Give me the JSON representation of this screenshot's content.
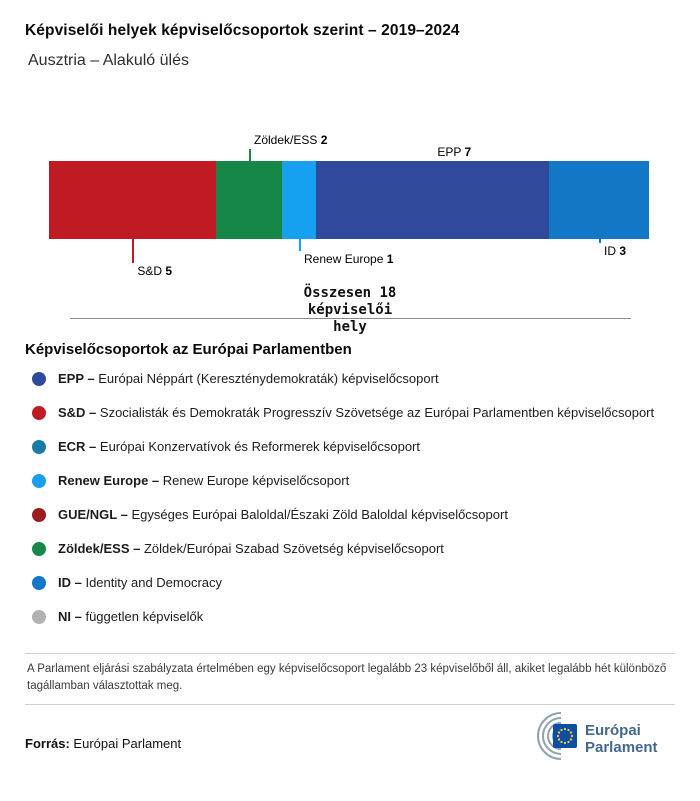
{
  "header": {
    "title": "Képviselői helyek képviselőcsoportok szerint – 2019–2024",
    "subtitle": "Ausztria – Alakuló ülés"
  },
  "chart_data": {
    "type": "bar",
    "title": "Képviselői helyek képviselőcsoportok szerint – 2019–2024",
    "subtitle": "Ausztria – Alakuló ülés",
    "total": 18,
    "total_label": "Összesen 18 képviselői hely",
    "segments": [
      {
        "name": "S&D",
        "value": 5,
        "color": "#c01a23",
        "label_side": "bottom"
      },
      {
        "name": "Zöldek/ESS",
        "value": 2,
        "color": "#178747",
        "label_side": "top"
      },
      {
        "name": "Renew Europe",
        "value": 1,
        "color": "#18a0f0",
        "label_side": "bottom"
      },
      {
        "name": "EPP",
        "value": 7,
        "color": "#31499c",
        "label_side": "top"
      },
      {
        "name": "ID",
        "value": 3,
        "color": "#1377c8",
        "label_side": "bottom"
      }
    ]
  },
  "legend": {
    "heading": "Képviselőcsoportok az Európai Parlamentben",
    "items": [
      {
        "abbr": "EPP –",
        "desc": "Európai Néppárt (Kereszténydemokraták) képviselőcsoport",
        "color": "#31499c"
      },
      {
        "abbr": "S&D –",
        "desc": "Szocialisták és Demokraták Progresszív Szövetsége az Európai Parlamentben képviselőcsoport",
        "color": "#c01a23"
      },
      {
        "abbr": "ECR –",
        "desc": "Európai Konzervatívok és Reformerek képviselőcsoport",
        "color": "#1a7ca6"
      },
      {
        "abbr": "Renew Europe –",
        "desc": "Renew Europe képviselőcsoport",
        "color": "#18a0f0"
      },
      {
        "abbr": "GUE/NGL –",
        "desc": "Egységes Európai Baloldal/Északi Zöld Baloldal képviselőcsoport",
        "color": "#9c1b1f"
      },
      {
        "abbr": "Zöldek/ESS –",
        "desc": "Zöldek/Európai Szabad Szövetség képviselőcsoport",
        "color": "#178747"
      },
      {
        "abbr": "ID –",
        "desc": "Identity and Democracy",
        "color": "#1377c8"
      },
      {
        "abbr": "NI –",
        "desc": "független képviselők",
        "color": "#b2b2b2"
      }
    ]
  },
  "footer": {
    "note": "A Parlament eljárási szabályzata értelmében egy képviselőcsoport legalább 23 képviselőből áll, akiket legalább hét különböző tagállamban választottak meg.",
    "source_label": "Forrás:",
    "source_value": "Európai Parlament",
    "logo": {
      "line1": "Európai",
      "line2": "Parlament"
    }
  }
}
